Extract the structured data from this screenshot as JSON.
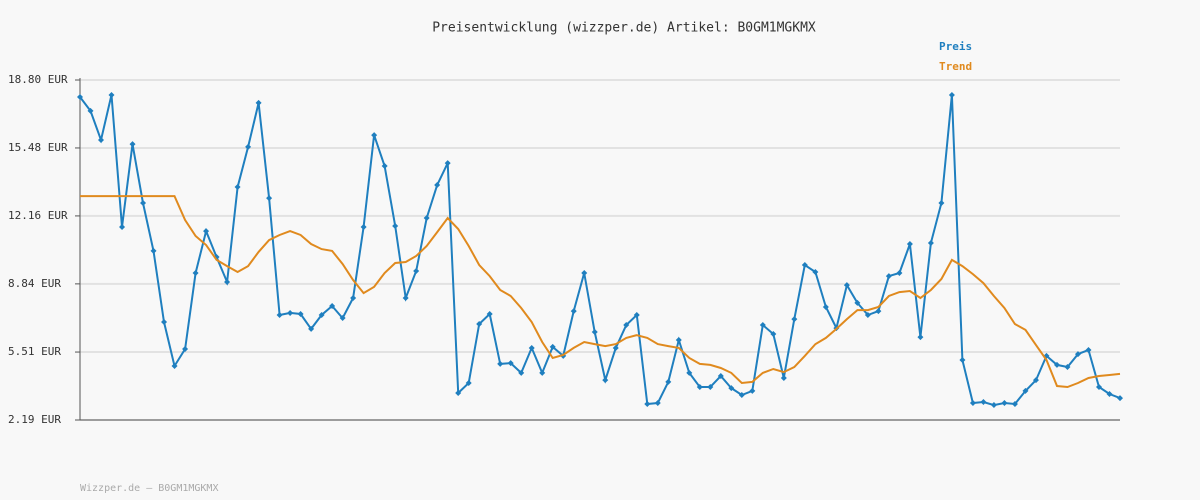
{
  "chart_data": {
    "type": "line",
    "title": "Preisentwicklung (wizzper.de) Artikel: B0GM1MGKMX",
    "footer": "Wizzper.de – B0GM1MGKMX",
    "ylim": [
      2.19,
      18.8
    ],
    "yticks": [
      {
        "value": 2.19,
        "label": "2.19 EUR"
      },
      {
        "value": 5.51,
        "label": "5.51 EUR"
      },
      {
        "value": 8.84,
        "label": "8.84 EUR"
      },
      {
        "value": 12.16,
        "label": "12.16 EUR"
      },
      {
        "value": 15.48,
        "label": "15.48 EUR"
      },
      {
        "value": 18.8,
        "label": "18.80 EUR"
      }
    ],
    "grid": true,
    "series": [
      {
        "name": "Preis",
        "color": "#1f7fbf",
        "markers": true,
        "values": [
          17.97,
          17.29,
          15.87,
          18.07,
          11.62,
          15.67,
          12.79,
          10.45,
          6.98,
          4.83,
          5.66,
          9.37,
          11.42,
          10.15,
          8.93,
          13.57,
          15.53,
          17.68,
          13.03,
          7.32,
          7.42,
          7.37,
          6.64,
          7.32,
          7.76,
          7.17,
          8.15,
          11.62,
          16.11,
          14.6,
          11.67,
          8.15,
          9.47,
          12.06,
          13.67,
          14.74,
          3.51,
          4.0,
          6.88,
          7.37,
          4.93,
          4.97,
          4.49,
          5.71,
          4.49,
          5.76,
          5.32,
          7.51,
          9.37,
          6.49,
          4.14,
          5.71,
          6.83,
          7.32,
          2.97,
          3.02,
          4.05,
          6.1,
          4.49,
          3.8,
          3.8,
          4.34,
          3.75,
          3.41,
          3.61,
          6.83,
          6.39,
          4.24,
          7.12,
          9.76,
          9.42,
          7.71,
          6.68,
          8.78,
          7.91,
          7.32,
          7.51,
          9.22,
          9.37,
          10.79,
          6.24,
          10.84,
          12.79,
          18.07,
          5.12,
          3.02,
          3.07,
          2.92,
          3.02,
          2.97,
          3.61,
          4.14,
          5.32,
          4.88,
          4.78,
          5.41,
          5.61,
          3.8,
          3.46,
          3.26
        ]
      },
      {
        "name": "Trend",
        "color": "#e08a1e",
        "markers": false,
        "values": [
          13.13,
          13.13,
          13.13,
          13.13,
          13.13,
          13.13,
          13.13,
          13.13,
          13.13,
          13.13,
          11.96,
          11.18,
          10.74,
          10.01,
          9.71,
          9.42,
          9.71,
          10.4,
          10.98,
          11.23,
          11.42,
          11.23,
          10.79,
          10.54,
          10.45,
          9.81,
          9.03,
          8.39,
          8.69,
          9.37,
          9.86,
          9.91,
          10.2,
          10.69,
          11.37,
          12.06,
          11.52,
          10.69,
          9.76,
          9.22,
          8.54,
          8.25,
          7.66,
          6.98,
          6.0,
          5.22,
          5.37,
          5.71,
          6.0,
          5.9,
          5.8,
          5.9,
          6.2,
          6.34,
          6.2,
          5.9,
          5.8,
          5.71,
          5.22,
          4.93,
          4.88,
          4.73,
          4.49,
          4.0,
          4.05,
          4.49,
          4.68,
          4.53,
          4.78,
          5.32,
          5.9,
          6.2,
          6.64,
          7.12,
          7.56,
          7.56,
          7.71,
          8.25,
          8.44,
          8.49,
          8.15,
          8.54,
          9.08,
          10.01,
          9.71,
          9.32,
          8.88,
          8.25,
          7.66,
          6.88,
          6.59,
          5.85,
          5.12,
          3.85,
          3.8,
          4.0,
          4.24,
          4.34,
          4.39,
          4.44
        ]
      }
    ]
  }
}
